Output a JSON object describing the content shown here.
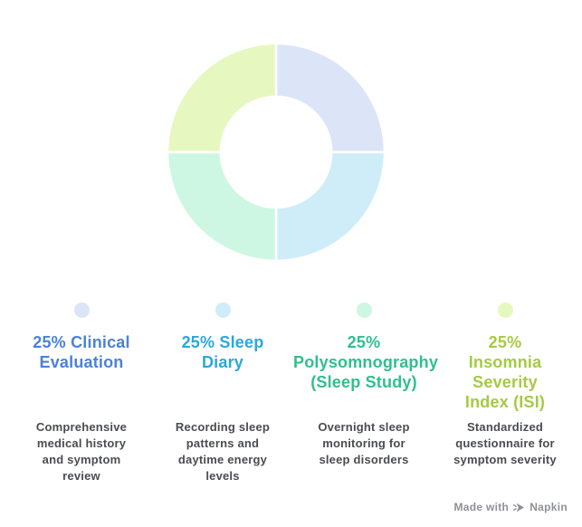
{
  "chart_data": {
    "type": "pie",
    "variant": "donut",
    "title": "",
    "categories": [
      "Clinical Evaluation",
      "Sleep Diary",
      "Polysomnography (Sleep Study)",
      "Insomnia Severity Index (ISI)"
    ],
    "values": [
      25,
      25,
      25,
      25
    ],
    "unit": "%",
    "colors": [
      "#dce4f8",
      "#cfecf9",
      "#cdf7e2",
      "#e6f8bf"
    ],
    "start_angle_deg": 0,
    "direction": "clockwise",
    "inner_radius_ratio": 0.51,
    "legend_position": "bottom",
    "segment_gap_color": "#ffffff"
  },
  "legend": {
    "items": [
      {
        "title": "25% Clinical\nEvaluation",
        "description": "Comprehensive\nmedical history\nand symptom\nreview",
        "color": "#dce4f8",
        "title_color": "#4a82d9"
      },
      {
        "title": "25% Sleep\nDiary",
        "description": "Recording sleep\npatterns and\ndaytime energy\nlevels",
        "color": "#cfecf9",
        "title_color": "#2ba7dc"
      },
      {
        "title": "25%\nPolysomnography\n(Sleep Study)",
        "description": "Overnight sleep\nmonitoring for\nsleep disorders",
        "color": "#cdf7e2",
        "title_color": "#30bf8e"
      },
      {
        "title": "25%\nInsomnia\nSeverity\nIndex (ISI)",
        "description": "Standardized\nquestionnaire for\nsymptom severity",
        "color": "#e6f8bf",
        "title_color": "#a5ca43"
      }
    ]
  },
  "footer": {
    "made_with": "Made with",
    "brand": "Napkin"
  }
}
